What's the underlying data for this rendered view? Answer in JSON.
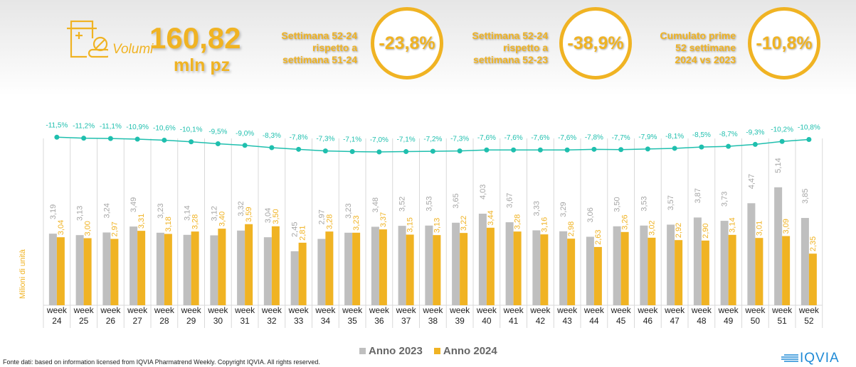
{
  "header": {
    "volume_label": "Volumi",
    "volume_value": "160,82",
    "volume_unit": "mln pz",
    "comparisons": [
      {
        "text": [
          "Settimana 52-24",
          "rispetto a",
          "settimana 51-24"
        ],
        "value": "-23,8%"
      },
      {
        "text": [
          "Settimana 52-24",
          "rispetto a",
          "settimana 52-23"
        ],
        "value": "-38,9%"
      },
      {
        "text": [
          "Cumulato prime",
          "52 settimane",
          "2024 vs 2023"
        ],
        "value": "-10,8%"
      }
    ]
  },
  "chart_data": {
    "type": "bar",
    "ylabel": "Milioni di unità",
    "categories": [
      "week 24",
      "week 25",
      "week 26",
      "week 27",
      "week 28",
      "week 29",
      "week 30",
      "week 31",
      "week 32",
      "week 33",
      "week 34",
      "week 35",
      "week 36",
      "week 37",
      "week 38",
      "week 39",
      "week 40",
      "week 41",
      "week 42",
      "week 43",
      "week 44",
      "week 45",
      "week 46",
      "week 47",
      "week 48",
      "week 49",
      "week 50",
      "week 51",
      "week 52"
    ],
    "series": [
      {
        "name": "Anno 2023",
        "color": "#bfbfbf",
        "values": [
          3.19,
          3.13,
          3.24,
          3.49,
          3.23,
          3.14,
          3.12,
          3.32,
          3.04,
          2.45,
          2.97,
          3.23,
          3.48,
          3.52,
          3.53,
          3.65,
          4.03,
          3.67,
          3.33,
          3.29,
          3.06,
          3.5,
          3.53,
          3.57,
          3.87,
          3.73,
          4.47,
          5.14,
          3.85
        ]
      },
      {
        "name": "Anno 2024",
        "color": "#f0b323",
        "values": [
          3.04,
          3.0,
          2.97,
          3.31,
          3.18,
          3.28,
          3.4,
          3.59,
          3.5,
          2.81,
          3.28,
          3.23,
          3.37,
          3.15,
          3.13,
          3.22,
          3.44,
          3.28,
          3.16,
          2.98,
          2.63,
          3.26,
          3.02,
          2.92,
          2.9,
          3.14,
          3.01,
          3.09,
          2.35
        ]
      }
    ],
    "line": {
      "type": "line",
      "color": "#1fbfae",
      "values": [
        -11.5,
        -11.2,
        -11.1,
        -10.9,
        -10.6,
        -10.1,
        -9.5,
        -9.0,
        -8.3,
        -7.8,
        -7.3,
        -7.1,
        -7.0,
        -7.1,
        -7.2,
        -7.3,
        -7.6,
        -7.6,
        -7.6,
        -7.6,
        -7.8,
        -7.7,
        -7.9,
        -8.1,
        -8.5,
        -8.7,
        -9.3,
        -10.2,
        -10.8
      ]
    },
    "legend": "bottom"
  },
  "footer": "Fonte dati: based on information licensed from IQVIA Pharmatrend Weekly. Copyright IQVIA. All rights reserved.",
  "logo": "IQVIA"
}
